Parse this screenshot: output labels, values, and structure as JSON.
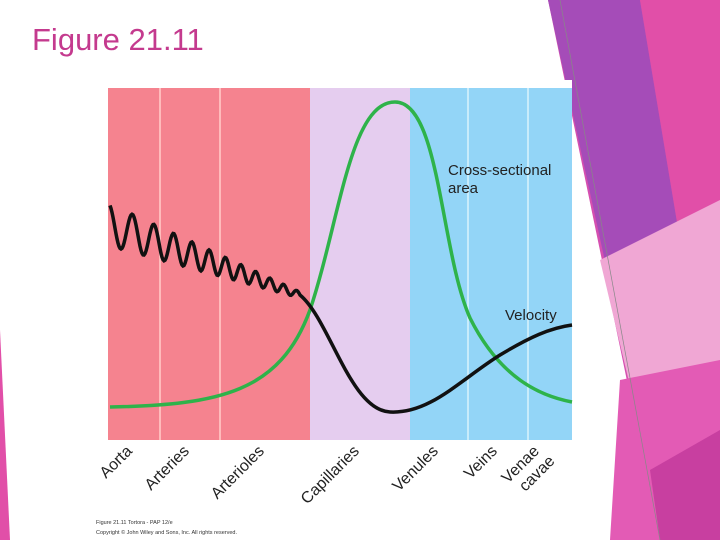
{
  "title": "Figure 21.11",
  "figure": {
    "regions": [
      "Aorta",
      "Arteries",
      "Arterioles",
      "Capillaries",
      "Venules",
      "Veins",
      [
        "Venae",
        "cavae"
      ]
    ],
    "area_label": [
      "Cross-sectional",
      "area"
    ],
    "velocity_label": "Velocity",
    "credit": [
      "Figure 21.11 Tortora - PAP 12/e",
      "Copyright © John Wiley and Sons, Inc. All rights reserved."
    ]
  }
}
